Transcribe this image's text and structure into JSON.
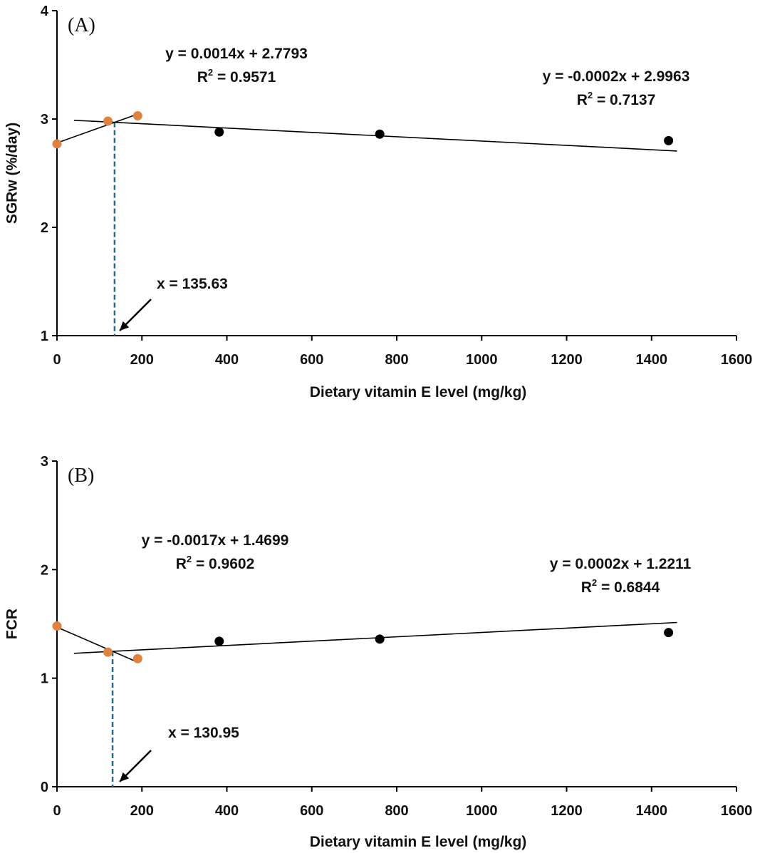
{
  "colors": {
    "segment1_points": "#e0813e",
    "segment2_points": "#000000",
    "breakpoint_line": "#1f6e8c",
    "trend_line": "#000000",
    "axis": "#000000"
  },
  "chart_data": [
    {
      "type": "scatter",
      "panel_label": "(A)",
      "xlabel": "Dietary vitamin E level (mg/kg)",
      "ylabel": "SGRw (%/day)",
      "xlim": [
        0,
        1600
      ],
      "ylim": [
        1,
        4
      ],
      "xticks": [
        0,
        200,
        400,
        600,
        800,
        1000,
        1200,
        1400,
        1600
      ],
      "yticks": [
        1,
        2,
        3,
        4
      ],
      "grid": false,
      "series": [
        {
          "points": [
            [
              0,
              2.77
            ],
            [
              120,
              2.98
            ],
            [
              190,
              3.03
            ]
          ]
        },
        {
          "points": [
            [
              382,
              2.88
            ],
            [
              760,
              2.86
            ],
            [
              1440,
              2.8
            ]
          ]
        }
      ],
      "trendlines": [
        {
          "slope": 0.0014,
          "intercept": 2.7793,
          "x_range": [
            0,
            190
          ],
          "equation": "y = 0.0014x + 2.7793",
          "r2_prefix": "R",
          "r2_sup": "2",
          "r2_value": " = 0.9571"
        },
        {
          "slope": -0.0002,
          "intercept": 2.9963,
          "x_range": [
            40,
            1460
          ],
          "equation": "y = -0.0002x + 2.9963",
          "r2_prefix": "R",
          "r2_sup": "2",
          "r2_value": " = 0.7137"
        }
      ],
      "breakpoint": {
        "x": 135.63,
        "label": "x = 135.63"
      }
    },
    {
      "type": "scatter",
      "panel_label": "(B)",
      "xlabel": "Dietary vitamin E level (mg/kg)",
      "ylabel": "FCR",
      "xlim": [
        0,
        1600
      ],
      "ylim": [
        0,
        3
      ],
      "xticks": [
        0,
        200,
        400,
        600,
        800,
        1000,
        1200,
        1400,
        1600
      ],
      "yticks": [
        0,
        1,
        2,
        3
      ],
      "grid": false,
      "series": [
        {
          "points": [
            [
              0,
              1.48
            ],
            [
              120,
              1.24
            ],
            [
              190,
              1.18
            ]
          ]
        },
        {
          "points": [
            [
              382,
              1.34
            ],
            [
              760,
              1.36
            ],
            [
              1440,
              1.42
            ]
          ]
        }
      ],
      "trendlines": [
        {
          "slope": -0.0017,
          "intercept": 1.4699,
          "x_range": [
            0,
            190
          ],
          "equation": "y = -0.0017x + 1.4699",
          "r2_prefix": "R",
          "r2_sup": "2",
          "r2_value": " = 0.9602"
        },
        {
          "slope": 0.0002,
          "intercept": 1.2211,
          "x_range": [
            40,
            1460
          ],
          "equation": "y = 0.0002x + 1.2211",
          "r2_prefix": "R",
          "r2_sup": "2",
          "r2_value": " = 0.6844"
        }
      ],
      "breakpoint": {
        "x": 130.95,
        "label": "x = 130.95"
      }
    }
  ]
}
